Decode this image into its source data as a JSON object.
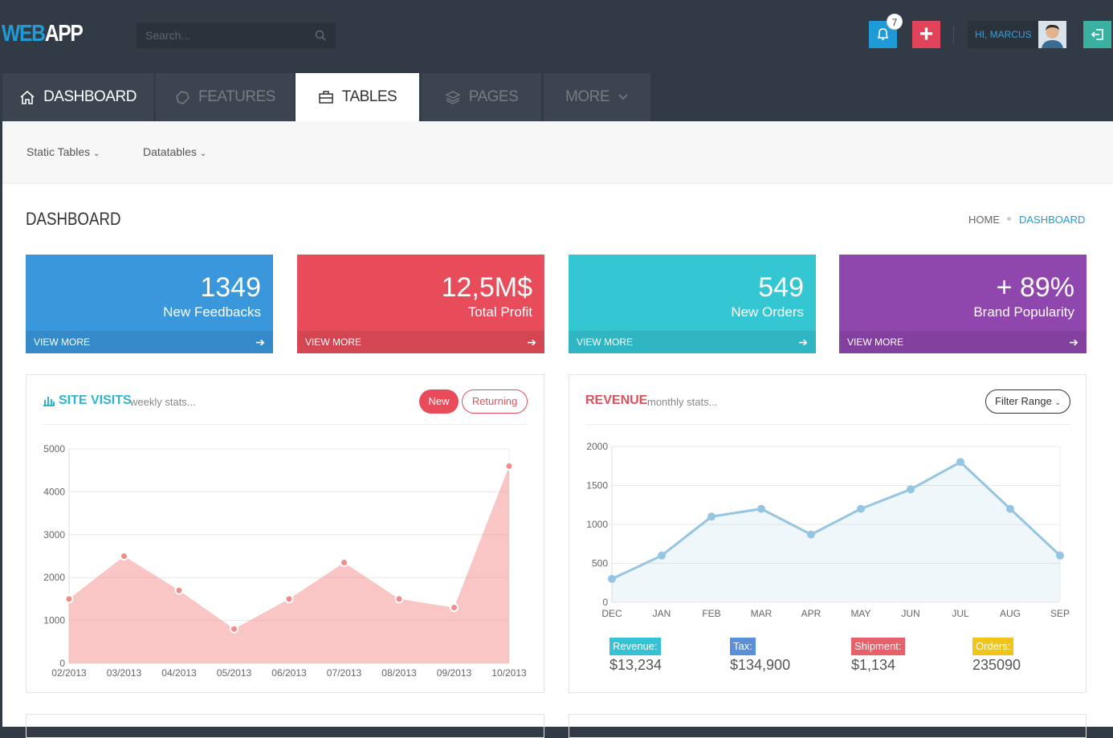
{
  "header": {
    "logo_web": "WEB",
    "logo_app": "APP",
    "search_placeholder": "Search...",
    "notifications": 7,
    "greeting": "HI, MARCUS"
  },
  "nav": {
    "tabs": [
      "DASHBOARD",
      "FEATURES",
      "TABLES",
      "PAGES",
      "MORE"
    ]
  },
  "subnav": [
    "Static Tables",
    "Datatables"
  ],
  "page": {
    "title": "DASHBOARD",
    "breadcrumb": [
      "HOME",
      "DASHBOARD"
    ]
  },
  "stats": [
    {
      "value": "1349",
      "label": "New Feedbacks",
      "link": "VIEW MORE",
      "color": "#3a97dc"
    },
    {
      "value": "12,5M$",
      "label": "Total Profit",
      "link": "VIEW MORE",
      "color": "#e84c5b"
    },
    {
      "value": "549",
      "label": "New Orders",
      "link": "VIEW MORE",
      "color": "#34c6d3"
    },
    {
      "value": "+ 89%",
      "label": "Brand Popularity",
      "link": "VIEW MORE",
      "color": "#8f46ad"
    }
  ],
  "site_visits": {
    "title": "SITE VISITS",
    "subtitle": "weekly stats...",
    "buttons": [
      "New",
      "Returning"
    ],
    "chart": {
      "type": "area",
      "categories": [
        "02/2013",
        "03/2013",
        "04/2013",
        "05/2013",
        "06/2013",
        "07/2013",
        "08/2013",
        "09/2013",
        "10/2013"
      ],
      "values": [
        1500,
        2500,
        1700,
        800,
        1500,
        2350,
        1500,
        1300,
        4600
      ],
      "color": "#f38b8b",
      "ylim": [
        0,
        5000
      ],
      "yticks": [
        0,
        1000,
        2000,
        3000,
        4000,
        5000
      ],
      "grid": true
    }
  },
  "revenue": {
    "title": "REVENUE",
    "subtitle": "monthly stats...",
    "filter": "Filter Range",
    "chart": {
      "type": "line",
      "categories": [
        "DEC",
        "JAN",
        "FEB",
        "MAR",
        "APR",
        "MAY",
        "JUN",
        "JUL",
        "AUG",
        "SEP"
      ],
      "values": [
        300,
        600,
        1100,
        1200,
        870,
        1200,
        1450,
        1800,
        1200,
        600
      ],
      "color": "#94c6e3",
      "ylim": [
        0,
        2000
      ],
      "yticks": [
        0,
        500,
        1000,
        1500,
        2000
      ],
      "grid": true
    },
    "totals": [
      {
        "label": "Revenue:",
        "value": "$13,234",
        "color": "#35c2d4"
      },
      {
        "label": "Tax:",
        "value": "$134,900",
        "color": "#5b8fd8"
      },
      {
        "label": "Shipment:",
        "value": "$1,134",
        "color": "#e8606a"
      },
      {
        "label": "Orders:",
        "value": "235090",
        "color": "#f0c419"
      }
    ]
  }
}
